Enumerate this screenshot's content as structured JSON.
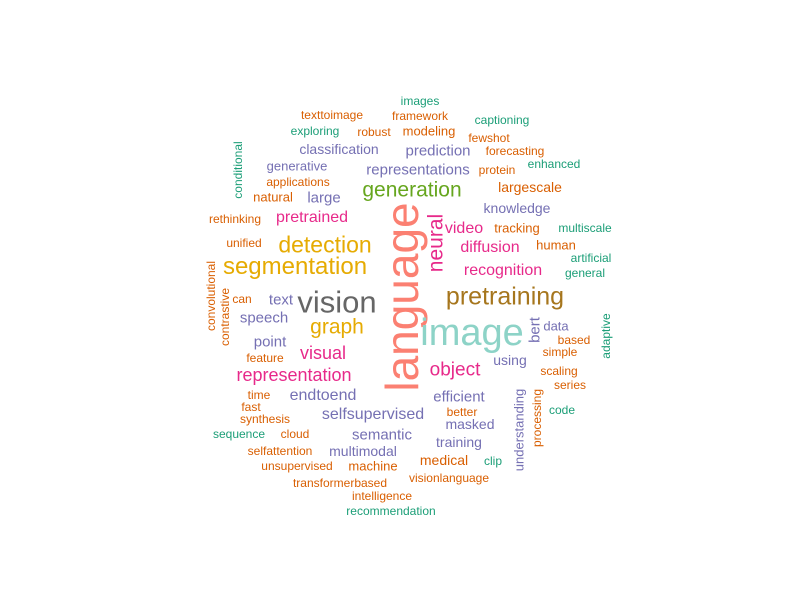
{
  "cloud": {
    "words": [
      {
        "text": "language",
        "color": "#fb8072"
      },
      {
        "text": "image",
        "color": "#8dd3c7"
      },
      {
        "text": "vision",
        "color": "#666666"
      },
      {
        "text": "pretraining",
        "color": "#a6761d"
      },
      {
        "text": "segmentation",
        "color": "#e6ab02"
      },
      {
        "text": "detection",
        "color": "#e6ab02"
      },
      {
        "text": "generation",
        "color": "#66a61e"
      },
      {
        "text": "neural",
        "color": "#e7298a"
      },
      {
        "text": "graph",
        "color": "#e6ab02"
      },
      {
        "text": "representation",
        "color": "#e7298a"
      },
      {
        "text": "visual",
        "color": "#e7298a"
      },
      {
        "text": "object",
        "color": "#e7298a"
      },
      {
        "text": "recognition",
        "color": "#e7298a"
      },
      {
        "text": "diffusion",
        "color": "#e7298a"
      },
      {
        "text": "pretrained",
        "color": "#e7298a"
      },
      {
        "text": "video",
        "color": "#e7298a"
      },
      {
        "text": "representations",
        "color": "#7570b3"
      },
      {
        "text": "prediction",
        "color": "#7570b3"
      },
      {
        "text": "classification",
        "color": "#7570b3"
      },
      {
        "text": "selfsupervised",
        "color": "#7570b3"
      },
      {
        "text": "endtoend",
        "color": "#7570b3"
      },
      {
        "text": "efficient",
        "color": "#7570b3"
      },
      {
        "text": "semantic",
        "color": "#7570b3"
      },
      {
        "text": "multimodal",
        "color": "#7570b3"
      },
      {
        "text": "training",
        "color": "#7570b3"
      },
      {
        "text": "masked",
        "color": "#7570b3"
      },
      {
        "text": "knowledge",
        "color": "#7570b3"
      },
      {
        "text": "large",
        "color": "#7570b3"
      },
      {
        "text": "speech",
        "color": "#7570b3"
      },
      {
        "text": "point",
        "color": "#7570b3"
      },
      {
        "text": "text",
        "color": "#7570b3"
      },
      {
        "text": "using",
        "color": "#7570b3"
      },
      {
        "text": "bert",
        "color": "#7570b3"
      },
      {
        "text": "understanding",
        "color": "#7570b3"
      },
      {
        "text": "generative",
        "color": "#7570b3"
      },
      {
        "text": "data",
        "color": "#7570b3"
      },
      {
        "text": "largescale",
        "color": "#d95f02"
      },
      {
        "text": "medical",
        "color": "#d95f02"
      },
      {
        "text": "machine",
        "color": "#d95f02"
      },
      {
        "text": "modeling",
        "color": "#d95f02"
      },
      {
        "text": "framework",
        "color": "#d95f02"
      },
      {
        "text": "applications",
        "color": "#d95f02"
      },
      {
        "text": "natural",
        "color": "#d95f02"
      },
      {
        "text": "rethinking",
        "color": "#d95f02"
      },
      {
        "text": "unified",
        "color": "#d95f02"
      },
      {
        "text": "texttoimage",
        "color": "#d95f02"
      },
      {
        "text": "robust",
        "color": "#d95f02"
      },
      {
        "text": "fewshot",
        "color": "#d95f02"
      },
      {
        "text": "forecasting",
        "color": "#d95f02"
      },
      {
        "text": "protein",
        "color": "#d95f02"
      },
      {
        "text": "tracking",
        "color": "#d95f02"
      },
      {
        "text": "human",
        "color": "#d95f02"
      },
      {
        "text": "based",
        "color": "#d95f02"
      },
      {
        "text": "simple",
        "color": "#d95f02"
      },
      {
        "text": "scaling",
        "color": "#d95f02"
      },
      {
        "text": "series",
        "color": "#d95f02"
      },
      {
        "text": "processing",
        "color": "#d95f02"
      },
      {
        "text": "better",
        "color": "#d95f02"
      },
      {
        "text": "cloud",
        "color": "#d95f02"
      },
      {
        "text": "synthesis",
        "color": "#d95f02"
      },
      {
        "text": "fast",
        "color": "#d95f02"
      },
      {
        "text": "time",
        "color": "#d95f02"
      },
      {
        "text": "feature",
        "color": "#d95f02"
      },
      {
        "text": "can",
        "color": "#d95f02"
      },
      {
        "text": "convolutional",
        "color": "#d95f02"
      },
      {
        "text": "contrastive",
        "color": "#d95f02"
      },
      {
        "text": "selfattention",
        "color": "#d95f02"
      },
      {
        "text": "unsupervised",
        "color": "#d95f02"
      },
      {
        "text": "transformerbased",
        "color": "#d95f02"
      },
      {
        "text": "intelligence",
        "color": "#d95f02"
      },
      {
        "text": "visionlanguage",
        "color": "#d95f02"
      },
      {
        "text": "images",
        "color": "#1b9e77"
      },
      {
        "text": "captioning",
        "color": "#1b9e77"
      },
      {
        "text": "exploring",
        "color": "#1b9e77"
      },
      {
        "text": "enhanced",
        "color": "#1b9e77"
      },
      {
        "text": "conditional",
        "color": "#1b9e77"
      },
      {
        "text": "multiscale",
        "color": "#1b9e77"
      },
      {
        "text": "artificial",
        "color": "#1b9e77"
      },
      {
        "text": "general",
        "color": "#1b9e77"
      },
      {
        "text": "adaptive",
        "color": "#1b9e77"
      },
      {
        "text": "code",
        "color": "#1b9e77"
      },
      {
        "text": "clip",
        "color": "#1b9e77"
      },
      {
        "text": "sequence",
        "color": "#1b9e77"
      },
      {
        "text": "recommendation",
        "color": "#1b9e77"
      }
    ]
  }
}
